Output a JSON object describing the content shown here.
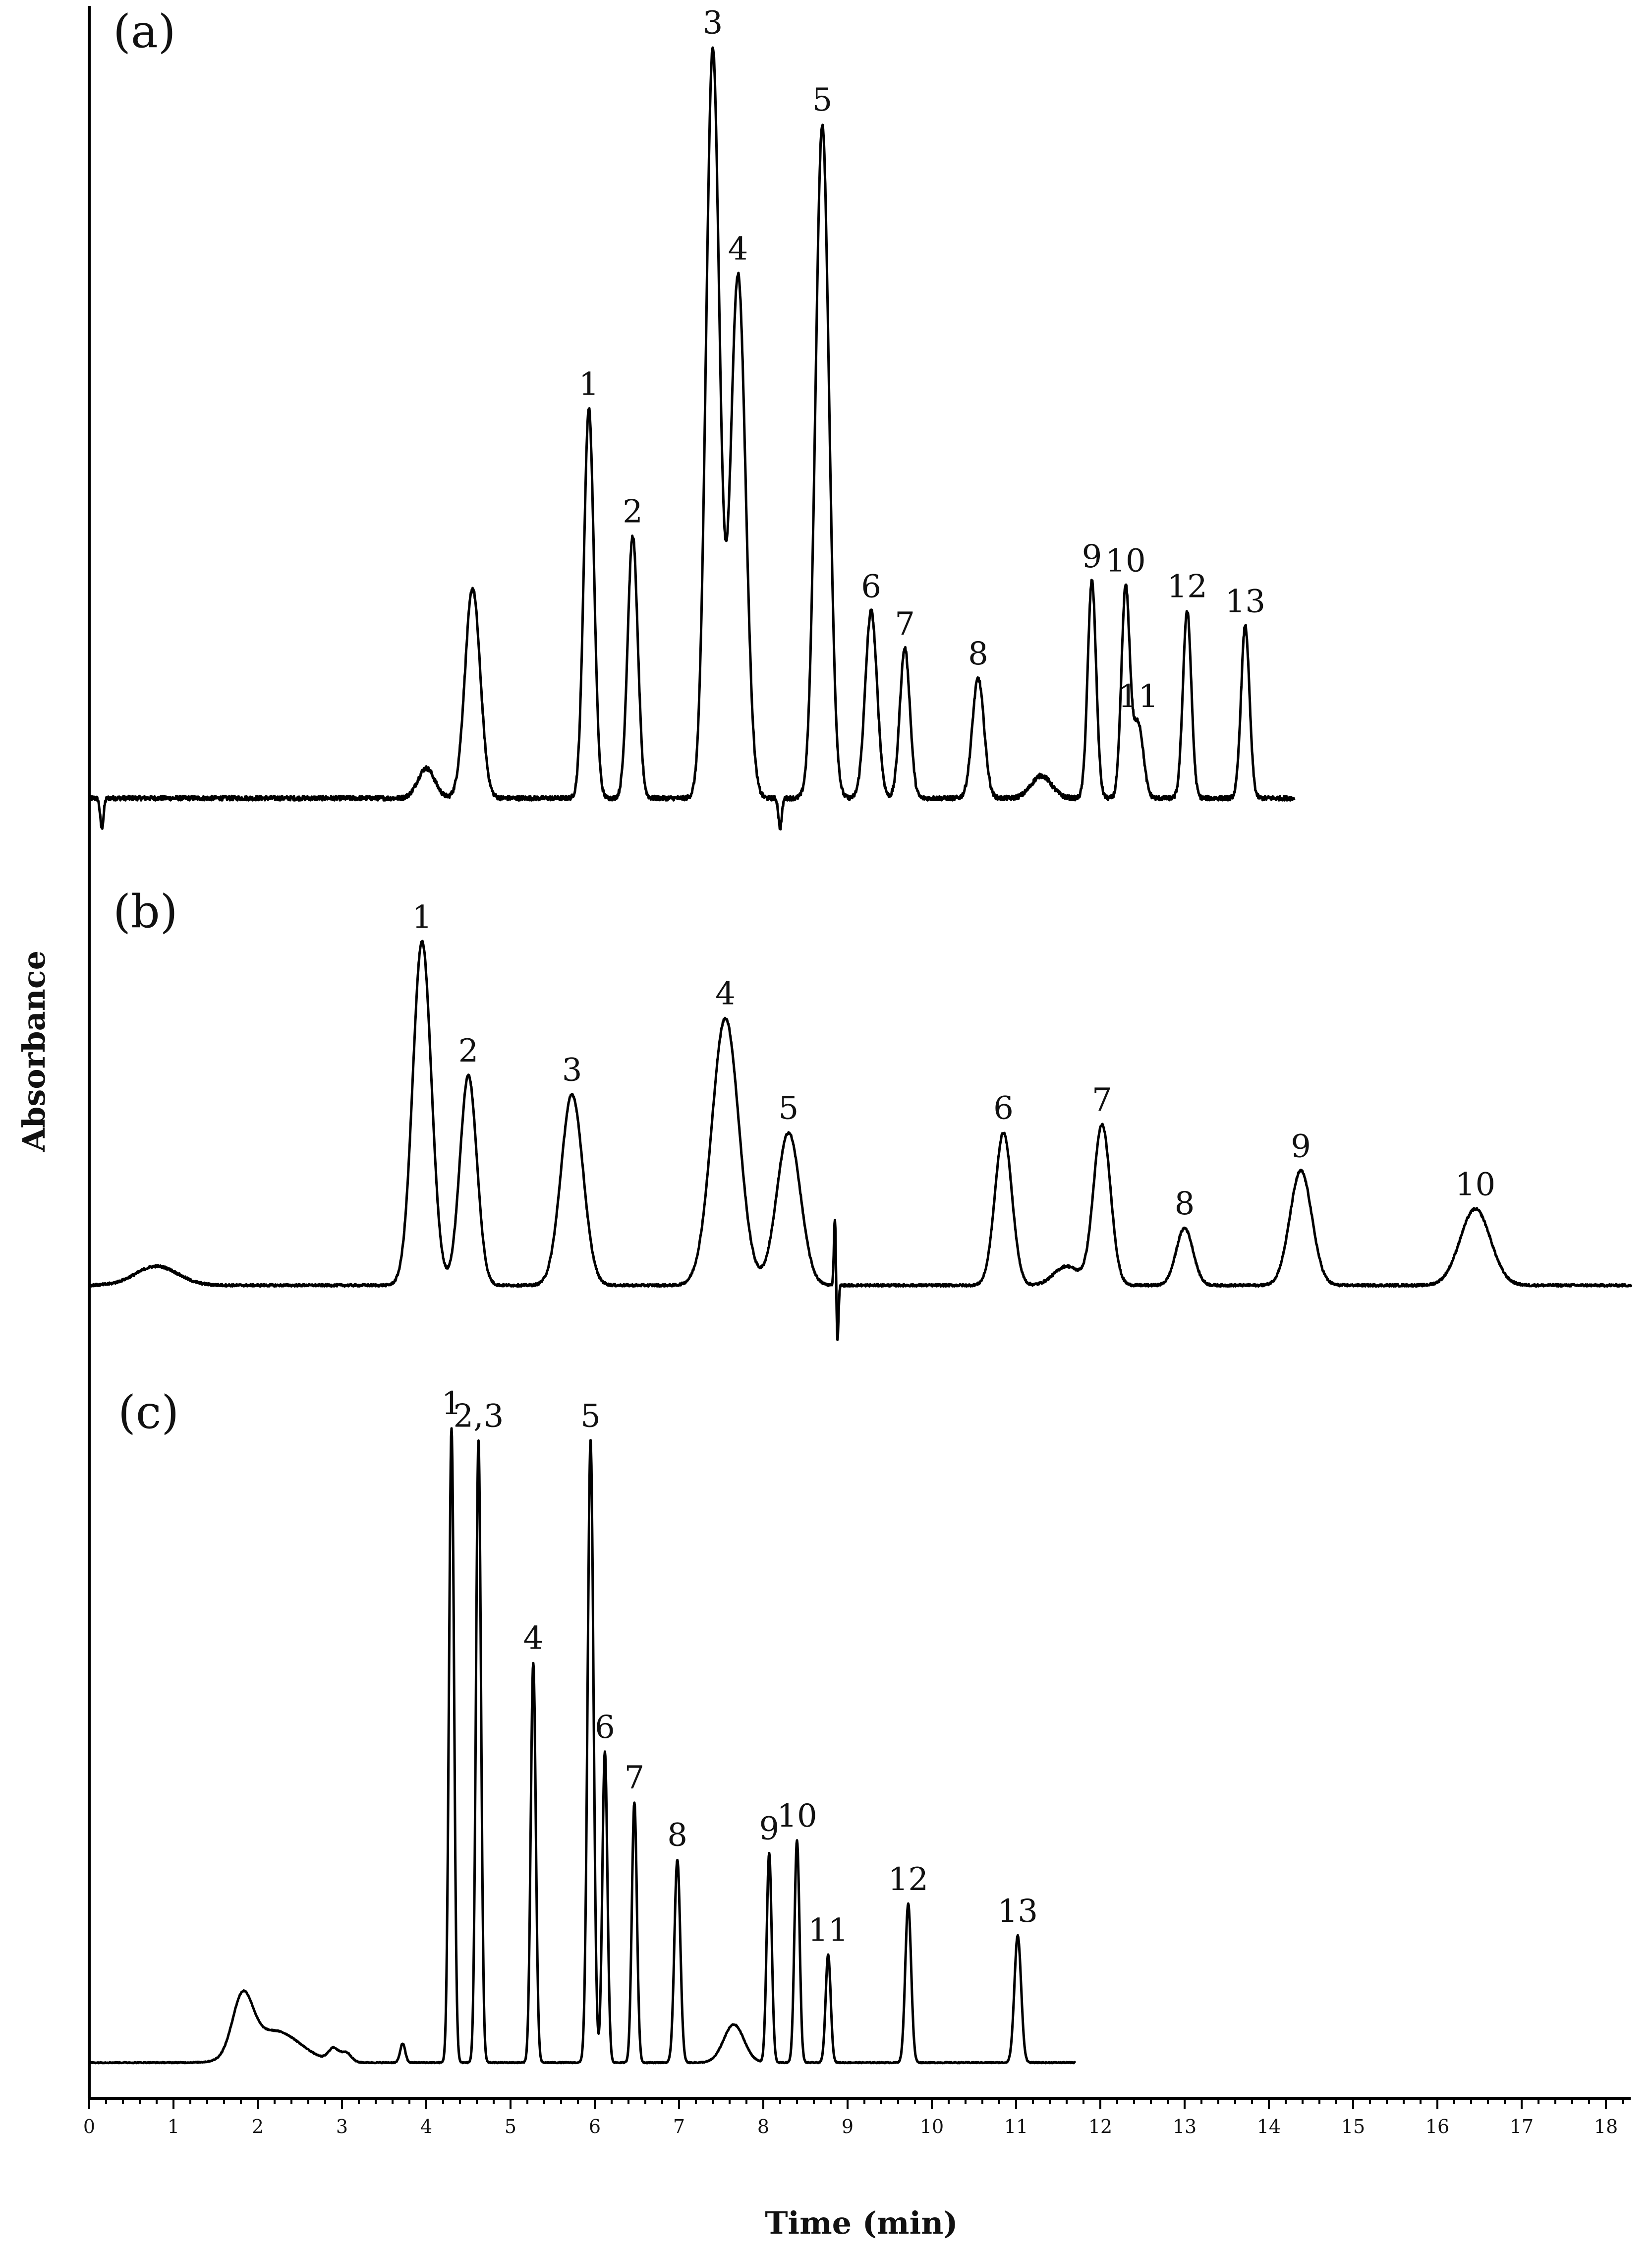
{
  "chart_data": {
    "type": "line",
    "xlabel": "Time (min)",
    "ylabel": "Absorbance",
    "xlim": [
      0,
      18.3
    ],
    "x_ticks": [
      0,
      1,
      2,
      3,
      4,
      5,
      6,
      7,
      8,
      9,
      10,
      11,
      12,
      13,
      14,
      15,
      16,
      17,
      18
    ],
    "x_minor_step": 0.2,
    "grid": false,
    "legend": "none",
    "panels": [
      {
        "label": "(a)",
        "x_end": 14.3,
        "baseline": 0.02,
        "features": [
          {
            "t": 0.15,
            "h": -0.04,
            "w": 0.02
          },
          {
            "t": 4.0,
            "h": 0.04,
            "w": 0.1
          },
          {
            "t": 4.55,
            "h": 0.28,
            "w": 0.09
          },
          {
            "t": 5.93,
            "h": 0.52,
            "w": 0.06
          },
          {
            "t": 6.45,
            "h": 0.35,
            "w": 0.06
          },
          {
            "t": 7.4,
            "h": 1.0,
            "w": 0.08
          },
          {
            "t": 7.7,
            "h": 0.7,
            "w": 0.09
          },
          {
            "t": 8.2,
            "h": -0.04,
            "w": 0.02
          },
          {
            "t": 8.7,
            "h": 0.9,
            "w": 0.08
          },
          {
            "t": 9.28,
            "h": 0.25,
            "w": 0.07
          },
          {
            "t": 9.68,
            "h": 0.2,
            "w": 0.06
          },
          {
            "t": 10.55,
            "h": 0.16,
            "w": 0.07
          },
          {
            "t": 11.3,
            "h": 0.03,
            "w": 0.12
          },
          {
            "t": 11.9,
            "h": 0.29,
            "w": 0.05
          },
          {
            "t": 12.3,
            "h": 0.28,
            "w": 0.05
          },
          {
            "t": 12.45,
            "h": 0.1,
            "w": 0.06
          },
          {
            "t": 13.03,
            "h": 0.25,
            "w": 0.05
          },
          {
            "t": 13.72,
            "h": 0.23,
            "w": 0.05
          }
        ],
        "peaks": [
          {
            "label": "1",
            "t": 5.93
          },
          {
            "label": "2",
            "t": 6.45
          },
          {
            "label": "3",
            "t": 7.4
          },
          {
            "label": "4",
            "t": 7.7
          },
          {
            "label": "5",
            "t": 8.7
          },
          {
            "label": "6",
            "t": 9.28
          },
          {
            "label": "7",
            "t": 9.68
          },
          {
            "label": "8",
            "t": 10.55
          },
          {
            "label": "9",
            "t": 11.9
          },
          {
            "label": "10",
            "t": 12.3
          },
          {
            "label": "11",
            "t": 12.45
          },
          {
            "label": "12",
            "t": 13.03
          },
          {
            "label": "13",
            "t": 13.72
          }
        ]
      },
      {
        "label": "(b)",
        "x_end": 18.3,
        "baseline": 0.01,
        "features": [
          {
            "t": 0.8,
            "h": 0.05,
            "w": 0.25
          },
          {
            "t": 3.95,
            "h": 0.9,
            "w": 0.11
          },
          {
            "t": 4.5,
            "h": 0.55,
            "w": 0.1
          },
          {
            "t": 5.73,
            "h": 0.5,
            "w": 0.13
          },
          {
            "t": 7.55,
            "h": 0.7,
            "w": 0.16
          },
          {
            "t": 8.3,
            "h": 0.4,
            "w": 0.14
          },
          {
            "t": 8.85,
            "h": 0.18,
            "w": 0.012
          },
          {
            "t": 8.88,
            "h": -0.15,
            "w": 0.012
          },
          {
            "t": 10.85,
            "h": 0.4,
            "w": 0.1
          },
          {
            "t": 11.6,
            "h": 0.05,
            "w": 0.15
          },
          {
            "t": 12.02,
            "h": 0.42,
            "w": 0.1
          },
          {
            "t": 13.0,
            "h": 0.15,
            "w": 0.1
          },
          {
            "t": 14.38,
            "h": 0.3,
            "w": 0.13
          },
          {
            "t": 16.45,
            "h": 0.2,
            "w": 0.18
          }
        ],
        "peaks": [
          {
            "label": "1",
            "t": 3.95
          },
          {
            "label": "2",
            "t": 4.5
          },
          {
            "label": "3",
            "t": 5.73
          },
          {
            "label": "4",
            "t": 7.55
          },
          {
            "label": "5",
            "t": 8.3
          },
          {
            "label": "6",
            "t": 10.85
          },
          {
            "label": "7",
            "t": 12.02
          },
          {
            "label": "8",
            "t": 13.0
          },
          {
            "label": "9",
            "t": 14.38
          },
          {
            "label": "10",
            "t": 16.45
          }
        ]
      },
      {
        "label": "(c)",
        "x_end": 11.7,
        "baseline": 0.0,
        "features": [
          {
            "t": 1.82,
            "h": 0.09,
            "w": 0.12
          },
          {
            "t": 2.2,
            "h": 0.05,
            "w": 0.3
          },
          {
            "t": 2.9,
            "h": 0.02,
            "w": 0.06
          },
          {
            "t": 3.05,
            "h": 0.015,
            "w": 0.06
          },
          {
            "t": 3.72,
            "h": 0.03,
            "w": 0.03
          },
          {
            "t": 4.3,
            "h": 1.0,
            "w": 0.03
          },
          {
            "t": 4.62,
            "h": 0.98,
            "w": 0.03
          },
          {
            "t": 5.27,
            "h": 0.63,
            "w": 0.03
          },
          {
            "t": 5.95,
            "h": 0.98,
            "w": 0.035
          },
          {
            "t": 6.12,
            "h": 0.49,
            "w": 0.03
          },
          {
            "t": 6.47,
            "h": 0.41,
            "w": 0.03
          },
          {
            "t": 6.98,
            "h": 0.32,
            "w": 0.035
          },
          {
            "t": 7.65,
            "h": 0.06,
            "w": 0.12
          },
          {
            "t": 8.07,
            "h": 0.33,
            "w": 0.03
          },
          {
            "t": 8.4,
            "h": 0.35,
            "w": 0.03
          },
          {
            "t": 8.77,
            "h": 0.17,
            "w": 0.03
          },
          {
            "t": 9.72,
            "h": 0.25,
            "w": 0.035
          },
          {
            "t": 11.02,
            "h": 0.2,
            "w": 0.04
          }
        ],
        "peaks": [
          {
            "label": "1",
            "t": 4.3
          },
          {
            "label": "2,3",
            "t": 4.62
          },
          {
            "label": "4",
            "t": 5.27
          },
          {
            "label": "5",
            "t": 5.95
          },
          {
            "label": "6",
            "t": 6.12
          },
          {
            "label": "7",
            "t": 6.47
          },
          {
            "label": "8",
            "t": 6.98
          },
          {
            "label": "9",
            "t": 8.07
          },
          {
            "label": "10",
            "t": 8.4
          },
          {
            "label": "11",
            "t": 8.77
          },
          {
            "label": "12",
            "t": 9.72
          },
          {
            "label": "13",
            "t": 11.02
          }
        ]
      }
    ]
  }
}
